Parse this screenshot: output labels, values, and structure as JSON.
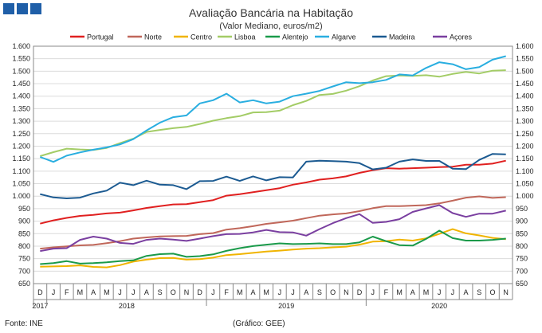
{
  "header": {
    "title": "Avaliação Bancária na Habitação",
    "subtitle": "(Valor Mediano, euros/m2)"
  },
  "footer": {
    "source": "Fonte: INE",
    "credit": "(Gráfico: GEE)"
  },
  "colors": {
    "logo": "#1f5fa8"
  },
  "chart_data": {
    "type": "line",
    "title": "Avaliação Bancária na Habitação",
    "subtitle": "(Valor Mediano, euros/m2)",
    "ylim": [
      650,
      1600
    ],
    "y_ticks": [
      "1.600",
      "1.550",
      "1.500",
      "1.450",
      "1.400",
      "1.350",
      "1.300",
      "1.250",
      "1.200",
      "1.150",
      "1.100",
      "1.050",
      "1.000",
      "950",
      "900",
      "850",
      "800",
      "750",
      "700",
      "650"
    ],
    "y_tick_values": [
      1600,
      1550,
      1500,
      1450,
      1400,
      1350,
      1300,
      1250,
      1200,
      1150,
      1100,
      1050,
      1000,
      950,
      900,
      850,
      800,
      750,
      700,
      650
    ],
    "x": [
      "D",
      "J",
      "F",
      "M",
      "A",
      "M",
      "J",
      "J",
      "A",
      "S",
      "O",
      "N",
      "D",
      "J",
      "F",
      "M",
      "A",
      "M",
      "J",
      "J",
      "A",
      "S",
      "O",
      "N",
      "D",
      "J",
      "F",
      "M",
      "A",
      "M",
      "J",
      "J",
      "A",
      "S",
      "O",
      "N"
    ],
    "year_labels": [
      {
        "label": "2017",
        "start": 0,
        "end": 0
      },
      {
        "label": "2018",
        "start": 1,
        "end": 12
      },
      {
        "label": "2019",
        "start": 13,
        "end": 24
      },
      {
        "label": "2020",
        "start": 25,
        "end": 35
      }
    ],
    "grid": true,
    "legend_position": "top",
    "series": [
      {
        "name": "Portugal",
        "color": "#e02020",
        "values": [
          890,
          903,
          913,
          921,
          925,
          931,
          934,
          943,
          953,
          960,
          967,
          968,
          976,
          984,
          1002,
          1008,
          1016,
          1024,
          1032,
          1046,
          1055,
          1066,
          1071,
          1079,
          1093,
          1104,
          1112,
          1110,
          1112,
          1114,
          1116,
          1118,
          1126,
          1126,
          1130,
          1142
        ]
      },
      {
        "name": "Norte",
        "color": "#c0675a",
        "values": [
          790,
          795,
          799,
          803,
          805,
          812,
          820,
          830,
          835,
          839,
          840,
          841,
          848,
          852,
          866,
          872,
          880,
          889,
          895,
          902,
          912,
          922,
          927,
          931,
          940,
          952,
          960,
          960,
          962,
          964,
          971,
          982,
          994,
          999,
          993,
          996
        ]
      },
      {
        "name": "Centro",
        "color": "#f0b400",
        "values": [
          718,
          719,
          720,
          723,
          717,
          715,
          724,
          738,
          746,
          752,
          753,
          746,
          748,
          754,
          764,
          768,
          773,
          778,
          782,
          786,
          790,
          792,
          795,
          798,
          806,
          818,
          820,
          826,
          822,
          831,
          849,
          868,
          851,
          843,
          833,
          828
        ]
      },
      {
        "name": "Lisboa",
        "color": "#a3cc66",
        "values": [
          1160,
          1176,
          1190,
          1187,
          1185,
          1193,
          1212,
          1230,
          1257,
          1265,
          1272,
          1277,
          1289,
          1302,
          1312,
          1320,
          1335,
          1336,
          1342,
          1364,
          1381,
          1405,
          1409,
          1422,
          1440,
          1463,
          1480,
          1483,
          1481,
          1484,
          1478,
          1489,
          1497,
          1491,
          1502,
          1504
        ]
      },
      {
        "name": "Alentejo",
        "color": "#1a9a4a",
        "values": [
          728,
          732,
          740,
          730,
          732,
          735,
          740,
          743,
          761,
          768,
          770,
          757,
          760,
          767,
          781,
          792,
          800,
          806,
          811,
          808,
          809,
          811,
          808,
          808,
          815,
          838,
          820,
          804,
          802,
          829,
          862,
          832,
          822,
          822,
          825,
          830
        ]
      },
      {
        "name": "Algarve",
        "color": "#29aee0",
        "values": [
          1157,
          1137,
          1162,
          1175,
          1186,
          1195,
          1207,
          1228,
          1263,
          1294,
          1316,
          1323,
          1371,
          1384,
          1410,
          1375,
          1384,
          1371,
          1378,
          1400,
          1410,
          1421,
          1439,
          1456,
          1452,
          1456,
          1465,
          1487,
          1483,
          1513,
          1536,
          1528,
          1508,
          1516,
          1546,
          1560
        ]
      },
      {
        "name": "Madeira",
        "color": "#1b5a91",
        "values": [
          1008,
          995,
          991,
          994,
          1011,
          1022,
          1054,
          1044,
          1062,
          1046,
          1044,
          1028,
          1060,
          1061,
          1078,
          1061,
          1079,
          1063,
          1076,
          1075,
          1138,
          1142,
          1140,
          1138,
          1132,
          1107,
          1114,
          1138,
          1147,
          1141,
          1141,
          1110,
          1108,
          1145,
          1169,
          1167
        ]
      },
      {
        "name": "Açores",
        "color": "#7a3fa0",
        "values": [
          780,
          790,
          792,
          825,
          838,
          830,
          813,
          809,
          825,
          830,
          826,
          821,
          830,
          840,
          848,
          849,
          855,
          865,
          856,
          855,
          842,
          868,
          892,
          912,
          928,
          893,
          897,
          908,
          937,
          951,
          964,
          932,
          917,
          930,
          930,
          942
        ]
      }
    ]
  }
}
